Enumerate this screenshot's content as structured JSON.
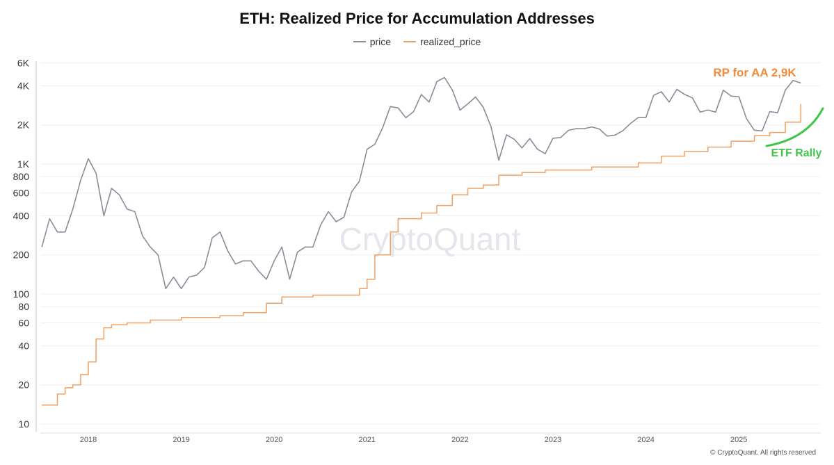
{
  "chart_data": {
    "type": "line",
    "title": "ETH: Realized Price for Accumulation Addresses",
    "y_scale": "log",
    "ylim": [
      10,
      6000
    ],
    "y_ticks": [
      {
        "v": 10,
        "label": "10"
      },
      {
        "v": 20,
        "label": "20"
      },
      {
        "v": 40,
        "label": "40"
      },
      {
        "v": 60,
        "label": "60"
      },
      {
        "v": 80,
        "label": "80"
      },
      {
        "v": 100,
        "label": "100"
      },
      {
        "v": 200,
        "label": "200"
      },
      {
        "v": 400,
        "label": "400"
      },
      {
        "v": 600,
        "label": "600"
      },
      {
        "v": 800,
        "label": "800"
      },
      {
        "v": 1000,
        "label": "1K"
      },
      {
        "v": 2000,
        "label": "2K"
      },
      {
        "v": 4000,
        "label": "4K"
      },
      {
        "v": 6000,
        "label": "6K"
      }
    ],
    "x_ticks": [
      "2018",
      "2019",
      "2020",
      "2021",
      "2022",
      "2023",
      "2024",
      "2025"
    ],
    "legend_position": "top-center",
    "grid": true,
    "series": [
      {
        "name": "price",
        "color": "#8a8c99",
        "x": [
          "2017-07",
          "2017-08",
          "2017-09",
          "2017-10",
          "2017-11",
          "2017-12",
          "2018-01",
          "2018-02",
          "2018-03",
          "2018-04",
          "2018-05",
          "2018-06",
          "2018-07",
          "2018-08",
          "2018-09",
          "2018-10",
          "2018-11",
          "2018-12",
          "2019-01",
          "2019-02",
          "2019-03",
          "2019-04",
          "2019-05",
          "2019-06",
          "2019-07",
          "2019-08",
          "2019-09",
          "2019-10",
          "2019-11",
          "2019-12",
          "2020-01",
          "2020-02",
          "2020-03",
          "2020-04",
          "2020-05",
          "2020-06",
          "2020-07",
          "2020-08",
          "2020-09",
          "2020-10",
          "2020-11",
          "2020-12",
          "2021-01",
          "2021-02",
          "2021-03",
          "2021-04",
          "2021-05",
          "2021-06",
          "2021-07",
          "2021-08",
          "2021-09",
          "2021-10",
          "2021-11",
          "2021-12",
          "2022-01",
          "2022-02",
          "2022-03",
          "2022-04",
          "2022-05",
          "2022-06",
          "2022-07",
          "2022-08",
          "2022-09",
          "2022-10",
          "2022-11",
          "2022-12",
          "2023-01",
          "2023-02",
          "2023-03",
          "2023-04",
          "2023-05",
          "2023-06",
          "2023-07",
          "2023-08",
          "2023-09",
          "2023-10",
          "2023-11",
          "2023-12",
          "2024-01",
          "2024-02",
          "2024-03",
          "2024-04",
          "2024-05",
          "2024-06",
          "2024-07",
          "2024-08",
          "2024-09",
          "2024-10",
          "2024-11",
          "2024-12",
          "2025-01",
          "2025-02",
          "2025-03",
          "2025-04",
          "2025-05",
          "2025-06",
          "2025-07",
          "2025-08",
          "2025-09"
        ],
        "values": [
          230,
          380,
          300,
          300,
          450,
          750,
          1100,
          850,
          400,
          650,
          580,
          450,
          430,
          280,
          230,
          200,
          110,
          135,
          110,
          135,
          140,
          160,
          270,
          300,
          215,
          170,
          180,
          180,
          150,
          130,
          180,
          230,
          130,
          210,
          230,
          230,
          340,
          430,
          360,
          390,
          610,
          740,
          1300,
          1420,
          1900,
          2770,
          2700,
          2270,
          2530,
          3430,
          3000,
          4300,
          4630,
          3700,
          2600,
          2900,
          3280,
          2730,
          1940,
          1070,
          1680,
          1550,
          1330,
          1570,
          1300,
          1200,
          1580,
          1600,
          1820,
          1870,
          1870,
          1930,
          1860,
          1640,
          1670,
          1800,
          2050,
          2280,
          2280,
          3380,
          3600,
          3000,
          3760,
          3430,
          3230,
          2510,
          2600,
          2510,
          3700,
          3330,
          3300,
          2230,
          1820,
          1800,
          2530,
          2480,
          3700,
          4400,
          4200
        ]
      },
      {
        "name": "realized_price",
        "color": "#f0a060",
        "x": [
          "2017-07",
          "2017-09",
          "2017-10",
          "2017-11",
          "2017-12",
          "2018-01",
          "2018-02",
          "2018-03",
          "2018-04",
          "2018-06",
          "2018-09",
          "2019-01",
          "2019-06",
          "2019-09",
          "2019-12",
          "2020-02",
          "2020-06",
          "2020-12",
          "2021-01",
          "2021-02",
          "2021-04",
          "2021-05",
          "2021-08",
          "2021-10",
          "2021-12",
          "2022-02",
          "2022-04",
          "2022-06",
          "2022-09",
          "2022-12",
          "2023-06",
          "2023-12",
          "2024-03",
          "2024-06",
          "2024-09",
          "2024-12",
          "2025-03",
          "2025-05",
          "2025-07",
          "2025-09"
        ],
        "values": [
          14,
          17,
          19,
          20,
          24,
          30,
          45,
          55,
          58,
          60,
          63,
          66,
          68,
          72,
          85,
          95,
          98,
          110,
          130,
          200,
          300,
          380,
          420,
          480,
          580,
          650,
          690,
          820,
          860,
          900,
          950,
          1020,
          1150,
          1250,
          1350,
          1500,
          1650,
          1750,
          2100,
          2900
        ]
      }
    ],
    "annotations": [
      {
        "text": "RP for AA 2,9K",
        "color": "#f08c3c"
      },
      {
        "text": "ETF Rally",
        "color": "#3fc54a"
      }
    ],
    "watermark": "CryptoQuant"
  },
  "credit": "© CryptoQuant. All rights reserved"
}
